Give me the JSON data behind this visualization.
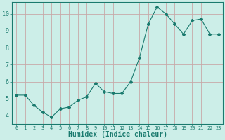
{
  "x": [
    0,
    1,
    2,
    3,
    4,
    5,
    6,
    7,
    8,
    9,
    10,
    11,
    12,
    13,
    14,
    15,
    16,
    17,
    18,
    19,
    20,
    21,
    22,
    23
  ],
  "y": [
    5.2,
    5.2,
    4.6,
    4.2,
    3.9,
    4.4,
    4.5,
    4.9,
    5.1,
    5.9,
    5.4,
    5.3,
    5.3,
    6.0,
    7.4,
    9.4,
    10.4,
    10.0,
    9.4,
    8.8,
    9.6,
    9.7,
    8.8,
    8.8
  ],
  "line_color": "#1a7a6e",
  "marker": "D",
  "marker_size": 2,
  "bg_color": "#cceee8",
  "grid_color": "#c8a8a8",
  "xlabel": "Humidex (Indice chaleur)",
  "xlabel_fontsize": 7,
  "ytick_labels": [
    "4",
    "5",
    "6",
    "7",
    "8",
    "9",
    "10"
  ],
  "ytick_values": [
    4,
    5,
    6,
    7,
    8,
    9,
    10
  ],
  "xlim": [
    -0.5,
    23.5
  ],
  "ylim": [
    3.5,
    10.7
  ]
}
